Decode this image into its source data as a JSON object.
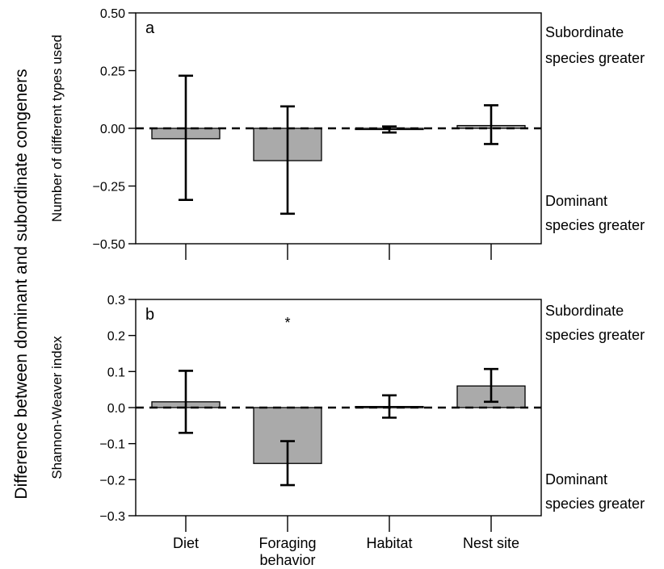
{
  "figure": {
    "shared_ylabel": "Difference between dominant and subordinate congeners",
    "categories": [
      "Diet",
      "Foraging behavior",
      "Habitat",
      "Nest site"
    ],
    "side_labels": {
      "top": [
        "Subordinate",
        "species greater"
      ],
      "bottom": [
        "Dominant",
        "species greater"
      ]
    }
  },
  "chart_data": [
    {
      "type": "bar",
      "panel": "a",
      "ylabel": "Number of different types used",
      "categories": [
        "Diet",
        "Foraging behavior",
        "Habitat",
        "Nest site"
      ],
      "values": [
        -0.045,
        -0.14,
        -0.003,
        0.012
      ],
      "error_low": [
        -0.31,
        -0.37,
        -0.018,
        -0.068
      ],
      "error_high": [
        0.228,
        0.095,
        0.008,
        0.1
      ],
      "ylim": [
        -0.5,
        0.5
      ],
      "yticks": [
        "0.50",
        "0.25",
        "0.00",
        "−0.25",
        "−0.50"
      ],
      "ytick_values": [
        0.5,
        0.25,
        0,
        -0.25,
        -0.5
      ],
      "reference_line": 0,
      "annotations": []
    },
    {
      "type": "bar",
      "panel": "b",
      "ylabel": "Shannon-Weaver index",
      "categories": [
        "Diet",
        "Foraging behavior",
        "Habitat",
        "Nest site"
      ],
      "values": [
        0.016,
        -0.155,
        0.003,
        0.06
      ],
      "error_low": [
        -0.07,
        -0.215,
        -0.028,
        0.016
      ],
      "error_high": [
        0.102,
        -0.093,
        0.034,
        0.107
      ],
      "ylim": [
        -0.3,
        0.3
      ],
      "yticks": [
        "0.3",
        "0.2",
        "0.1",
        "0.0",
        "−0.1",
        "−0.2",
        "−0.3"
      ],
      "ytick_values": [
        0.3,
        0.2,
        0.1,
        0,
        -0.1,
        -0.2,
        -0.3
      ],
      "reference_line": 0,
      "annotations": [
        {
          "category": "Foraging behavior",
          "text": "*"
        }
      ]
    }
  ]
}
